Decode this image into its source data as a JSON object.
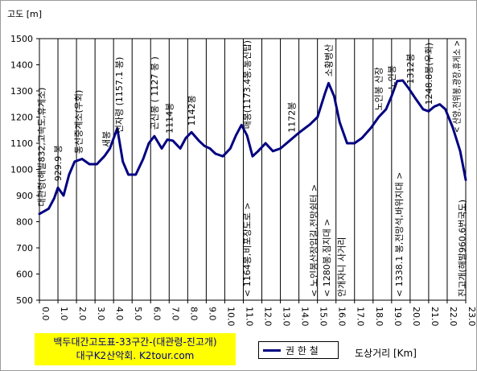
{
  "chart_data": {
    "type": "line",
    "ylabel": "고도 [m]",
    "xlabel": "도상거리 [Km]",
    "ylim": [
      500,
      1500
    ],
    "xlim": [
      0,
      23
    ],
    "y_ticks": [
      "500",
      "600",
      "700",
      "800",
      "900",
      "1000",
      "1100",
      "1200",
      "1300",
      "1400",
      "1500"
    ],
    "x_ticks": [
      "0.0",
      "1.0",
      "2.0",
      "3.0",
      "4.0",
      "5.0",
      "6.0",
      "7.0",
      "8.0",
      "9.0",
      "10.0",
      "11.0",
      "12.0",
      "13.0",
      "14.0",
      "15.0",
      "16.0",
      "17.0",
      "18.0",
      "19.0",
      "20.0",
      "21.0",
      "22.0",
      "23.0"
    ],
    "grid": "vertical",
    "series": [
      {
        "name": "권 한 철",
        "color": "#000080",
        "x": [
          0,
          0.5,
          0.8,
          1.0,
          1.3,
          1.6,
          1.9,
          2.3,
          2.7,
          3.1,
          3.5,
          3.8,
          4.2,
          4.5,
          4.8,
          5.2,
          5.6,
          5.9,
          6.2,
          6.6,
          6.9,
          7.2,
          7.6,
          7.9,
          8.2,
          8.6,
          8.9,
          9.2,
          9.5,
          9.9,
          10.3,
          10.6,
          10.9,
          11.2,
          11.5,
          11.8,
          12.2,
          12.6,
          13.0,
          13.5,
          14.0,
          14.6,
          15.0,
          15.4,
          15.6,
          15.9,
          16.2,
          16.6,
          17.0,
          17.4,
          17.9,
          18.3,
          18.7,
          19.0,
          19.3,
          19.6,
          19.9,
          20.3,
          20.7,
          21.0,
          21.3,
          21.6,
          21.9,
          22.3,
          22.7,
          23.0
        ],
        "y": [
          830,
          850,
          890,
          930,
          900,
          980,
          1030,
          1040,
          1020,
          1020,
          1050,
          1080,
          1157,
          1030,
          980,
          980,
          1040,
          1100,
          1127,
          1080,
          1114,
          1110,
          1080,
          1120,
          1142,
          1110,
          1090,
          1080,
          1060,
          1050,
          1080,
          1130,
          1170,
          1130,
          1050,
          1070,
          1100,
          1070,
          1080,
          1110,
          1140,
          1172,
          1200,
          1290,
          1330,
          1280,
          1180,
          1100,
          1100,
          1120,
          1160,
          1200,
          1230,
          1280,
          1338,
          1340,
          1312,
          1270,
          1230,
          1222,
          1240,
          1249,
          1230,
          1160,
          1070,
          960
        ]
      }
    ],
    "annotations": [
      {
        "x": 0.1,
        "text": "대관령(해발832,고속도,휴게소)"
      },
      {
        "x": 1.0,
        "text": "929.9 봉"
      },
      {
        "x": 2.1,
        "text": "통신중계소(우회)"
      },
      {
        "x": 3.6,
        "text": "새봉"
      },
      {
        "x": 4.3,
        "text": "선자령 (1157.1 봉)"
      },
      {
        "x": 6.2,
        "text": "곤신봉 ( 1127 봉 )"
      },
      {
        "x": 7.0,
        "text": "1114봉"
      },
      {
        "x": 8.2,
        "text": "1142봉"
      },
      {
        "x": 11.2,
        "text": "매봉(1173.4봉,통신탑)"
      },
      {
        "x": 11.2,
        "text": "< 1164봉,비포장도로 >",
        "side": "below"
      },
      {
        "x": 13.6,
        "text": "1172봉"
      },
      {
        "x": 15.6,
        "text": "소황병산"
      },
      {
        "x": 14.8,
        "text": "< 노인봉산장입길,전망쉼터 >",
        "side": "below"
      },
      {
        "x": 15.5,
        "text": "< 1280봉,짐지대 >",
        "side": "below"
      },
      {
        "x": 16.3,
        "text": "안개자니 사거리",
        "side": "below"
      },
      {
        "x": 18.3,
        "text": "노인봉 산장"
      },
      {
        "x": 19.0,
        "text": "노인봉"
      },
      {
        "x": 19.4,
        "text": "< 1338.1 봉,전망석,바위지대 >",
        "side": "below"
      },
      {
        "x": 20.0,
        "text": "1312봉"
      },
      {
        "x": 21.0,
        "text": "1248.8봉(우회)"
      },
      {
        "x": 22.5,
        "text": "< 산양,전위봉,광장,휴게소 >"
      },
      {
        "x": 22.8,
        "text": "진고개(해발960,6번국도)",
        "side": "below"
      }
    ]
  },
  "title_box": {
    "line1": "백두대간고도표-33구간-(대관령-진고개)",
    "line2": "대구K2산악회. K2tour.com"
  },
  "legend": {
    "label": "권 한 철"
  },
  "x_axis_label": "도상거리 [Km]"
}
